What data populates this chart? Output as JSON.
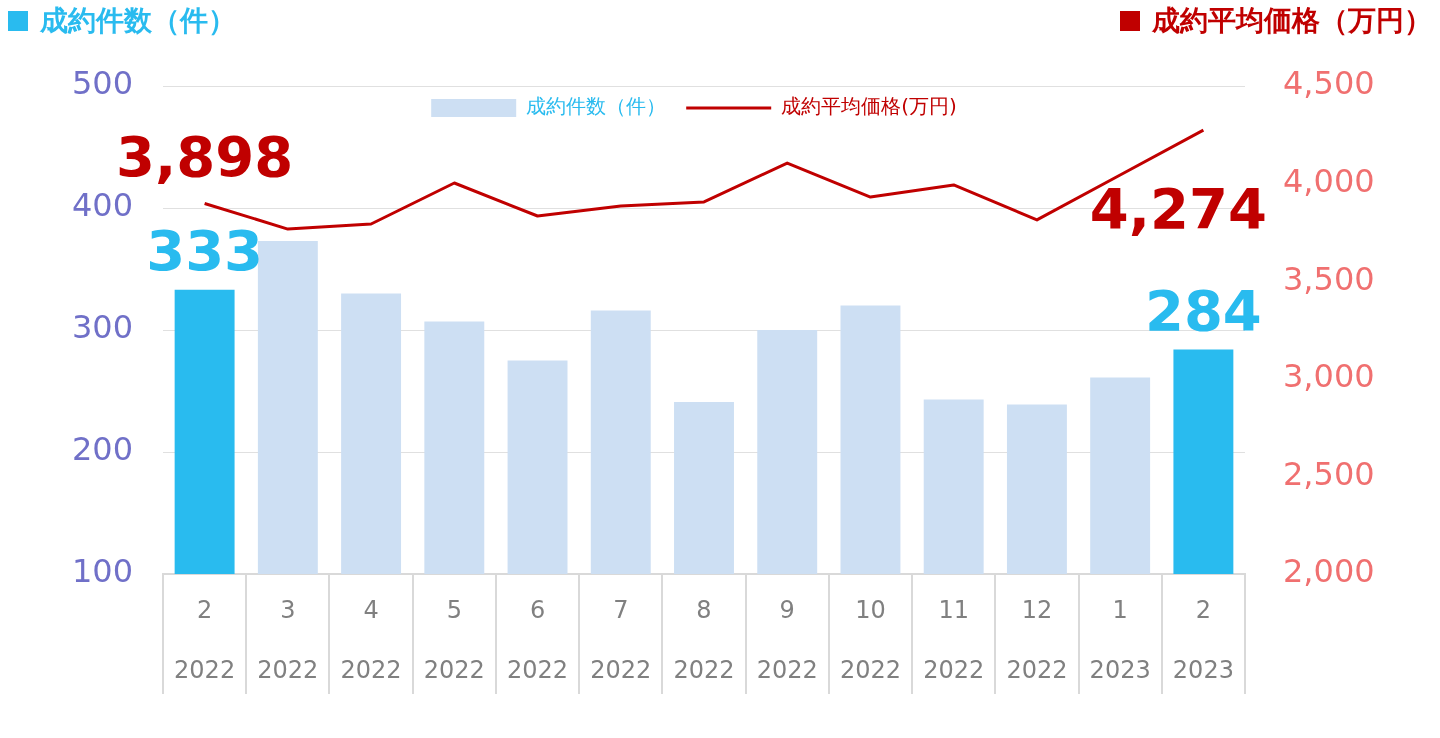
{
  "chart_data": {
    "type": "bar",
    "ylabel": "成約件数（件）",
    "y2label": "成約平均価格（万円）",
    "categories": [
      "2\n2022",
      "3\n2022",
      "4\n2022",
      "5\n2022",
      "6\n2022",
      "7\n2022",
      "8\n2022",
      "9\n2022",
      "10\n2022",
      "11\n2022",
      "12\n2022",
      "1\n2023",
      "2\n2023"
    ],
    "series": [
      {
        "name": "成約件数（件）",
        "color": "#cddff3",
        "colors": [
          "#29bbef",
          "#cddff3",
          "#cddff3",
          "#cddff3",
          "#cddff3",
          "#cddff3",
          "#cddff3",
          "#cddff3",
          "#cddff3",
          "#cddff3",
          "#cddff3",
          "#cddff3",
          "#29bbef"
        ],
        "values": [
          333,
          373,
          330,
          307,
          275,
          316,
          241,
          300,
          320,
          243,
          239,
          261,
          284
        ],
        "value_labels": [
          "333",
          null,
          null,
          null,
          null,
          null,
          null,
          null,
          null,
          null,
          null,
          null,
          "284"
        ]
      },
      {
        "name": "成約平均価格(万円)",
        "type": "line",
        "axis": "y2",
        "color": "#c00000",
        "values": [
          3898,
          3767,
          3793,
          4003,
          3834,
          3885,
          3906,
          4105,
          3931,
          3993,
          3814,
          4044,
          4274
        ],
        "value_labels": [
          "3,898",
          null,
          null,
          null,
          null,
          null,
          null,
          null,
          null,
          null,
          null,
          null,
          "4,274"
        ]
      }
    ],
    "ylim": [
      100,
      500
    ],
    "yticks": [
      100,
      200,
      300,
      400,
      500
    ],
    "y2lim": [
      2000,
      4500
    ],
    "y2ticks": [
      {
        "value": 2000,
        "label": "2,000"
      },
      {
        "value": 2500,
        "label": "2,500"
      },
      {
        "value": 3000,
        "label": "3,000"
      },
      {
        "value": 3500,
        "label": "3,500"
      },
      {
        "value": 4000,
        "label": "4,000"
      },
      {
        "value": 4500,
        "label": "4,500"
      }
    ],
    "grid": "y",
    "legend": "top",
    "marker": "none",
    "line_style": "solid"
  }
}
